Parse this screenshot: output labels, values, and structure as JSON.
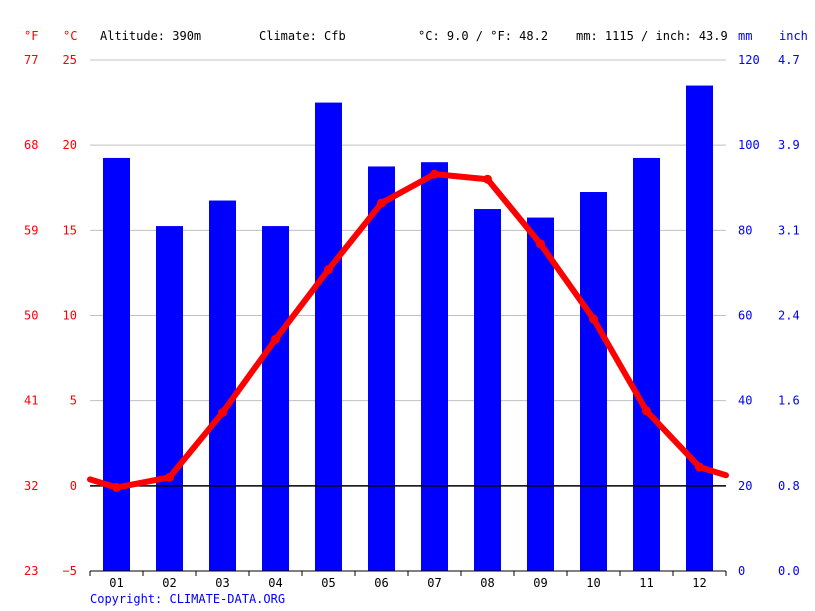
{
  "header": {
    "unit_f": "°F",
    "unit_c": "°C",
    "altitude": "Altitude: 390m",
    "climate": "Climate: Cfb",
    "temp_avg": "°C: 9.0 / °F: 48.2",
    "precip_total": "mm: 1115 / inch: 43.9",
    "unit_mm": "mm",
    "unit_inch": "inch"
  },
  "axes": {
    "f_ticks": [
      "77",
      "68",
      "59",
      "50",
      "41",
      "32",
      "23"
    ],
    "c_ticks": [
      "25",
      "20",
      "15",
      "10",
      "5",
      "0",
      "−5"
    ],
    "mm_ticks": [
      "120",
      "100",
      "80",
      "60",
      "40",
      "20",
      "0"
    ],
    "inch_ticks": [
      "4.7",
      "3.9",
      "3.1",
      "2.4",
      "1.6",
      "0.8",
      "0.0"
    ]
  },
  "copyright": "Copyright: CLIMATE-DATA.ORG",
  "colors": {
    "precip_bar": "#0000ff",
    "temp_line": "#ff0000",
    "zero_line": "#000000",
    "grid": "#c0c0c0"
  },
  "chart_data": {
    "type": "bar",
    "categories": [
      "01",
      "02",
      "03",
      "04",
      "05",
      "06",
      "07",
      "08",
      "09",
      "10",
      "11",
      "12"
    ],
    "series": [
      {
        "type": "bar",
        "axis": "mm",
        "values": [
          97,
          81,
          87,
          81,
          110,
          95,
          96,
          85,
          83,
          89,
          97,
          114
        ]
      },
      {
        "type": "line",
        "axis": "°C",
        "values": [
          -0.1,
          0.5,
          4.3,
          8.6,
          12.7,
          16.6,
          18.3,
          18.0,
          14.2,
          9.8,
          4.4,
          1.1
        ]
      }
    ],
    "temp_axis_c": [
      -5,
      25
    ],
    "precip_axis_mm": [
      0,
      120
    ],
    "grid": true
  }
}
